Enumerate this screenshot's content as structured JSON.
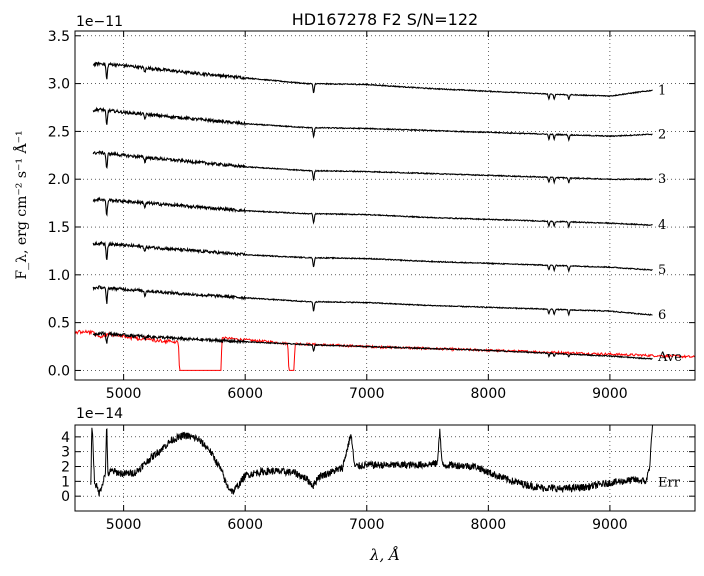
{
  "figure": {
    "title": "HD167278  F2  S/N=122",
    "xlabel": "λ, Å",
    "top_ylabel": "F_λ, erg cm⁻² s⁻¹ Å⁻¹",
    "top_offset_label": "1e−11",
    "bottom_offset_label": "1e−14"
  },
  "colors": {
    "spectra": "#000000",
    "average_overlay": "#ff0000",
    "background": "#ffffff"
  },
  "chart_data": [
    {
      "type": "line",
      "panel": "flux",
      "title": "HD167278  F2  S/N=122",
      "ylabel": "F_λ, erg cm⁻² s⁻¹ Å⁻¹",
      "y_multiplier": "1e-11",
      "xlim": [
        4600,
        9700
      ],
      "ylim": [
        -0.1,
        3.55
      ],
      "x_ticks": [
        5000,
        6000,
        7000,
        8000,
        9000
      ],
      "y_ticks": [
        0.0,
        0.5,
        1.0,
        1.5,
        2.0,
        2.5,
        3.0,
        3.5
      ],
      "x_tick_labels": [
        "5000",
        "6000",
        "7000",
        "8000",
        "9000"
      ],
      "y_tick_labels": [
        "0.0",
        "0.5",
        "1.0",
        "1.5",
        "2.0",
        "2.5",
        "3.0",
        "3.5"
      ],
      "grid": true,
      "absorption_lines": [
        4861,
        5175,
        6563,
        8498,
        8542,
        8662
      ],
      "series": [
        {
          "name": "1",
          "x": [
            4750,
            4800,
            5000,
            5500,
            6000,
            6500,
            7000,
            7500,
            8000,
            8500,
            9000,
            9350
          ],
          "values": [
            3.2,
            3.21,
            3.19,
            3.12,
            3.06,
            3.0,
            2.99,
            2.95,
            2.92,
            2.89,
            2.87,
            2.93
          ]
        },
        {
          "name": "2",
          "x": [
            4750,
            4800,
            5000,
            5500,
            6000,
            6500,
            7000,
            7500,
            8000,
            8500,
            9000,
            9350
          ],
          "values": [
            2.72,
            2.73,
            2.7,
            2.64,
            2.58,
            2.54,
            2.53,
            2.51,
            2.49,
            2.47,
            2.45,
            2.47
          ]
        },
        {
          "name": "3",
          "x": [
            4750,
            4800,
            5000,
            5500,
            6000,
            6500,
            7000,
            7500,
            8000,
            8500,
            9000,
            9350
          ],
          "values": [
            2.27,
            2.28,
            2.25,
            2.19,
            2.13,
            2.09,
            2.08,
            2.06,
            2.04,
            2.02,
            2.0,
            2.0
          ]
        },
        {
          "name": "4",
          "x": [
            4750,
            4800,
            5000,
            5500,
            6000,
            6500,
            7000,
            7500,
            8000,
            8500,
            9000,
            9350
          ],
          "values": [
            1.78,
            1.79,
            1.77,
            1.72,
            1.67,
            1.64,
            1.63,
            1.6,
            1.58,
            1.56,
            1.54,
            1.52
          ]
        },
        {
          "name": "5",
          "x": [
            4750,
            4800,
            5000,
            5500,
            6000,
            6500,
            7000,
            7500,
            8000,
            8500,
            9000,
            9350
          ],
          "values": [
            1.32,
            1.33,
            1.31,
            1.26,
            1.21,
            1.18,
            1.17,
            1.14,
            1.12,
            1.1,
            1.08,
            1.05
          ]
        },
        {
          "name": "6",
          "x": [
            4750,
            4800,
            5000,
            5500,
            6000,
            6500,
            7000,
            7500,
            8000,
            8500,
            9000,
            9350
          ],
          "values": [
            0.86,
            0.87,
            0.85,
            0.8,
            0.76,
            0.72,
            0.71,
            0.68,
            0.66,
            0.64,
            0.62,
            0.58
          ]
        },
        {
          "name": "Ave",
          "x": [
            4750,
            4800,
            5000,
            5500,
            6000,
            6500,
            7000,
            7500,
            8000,
            8500,
            9000,
            9350
          ],
          "values": [
            0.38,
            0.39,
            0.37,
            0.33,
            0.3,
            0.27,
            0.25,
            0.23,
            0.21,
            0.18,
            0.15,
            0.12
          ]
        }
      ],
      "red_overlay": {
        "x": [
          4600,
          4750,
          4800,
          4850,
          4900,
          5000,
          5200,
          5450,
          5460,
          5800,
          5810,
          6000,
          6200,
          6350,
          6360,
          6400,
          6410,
          6600,
          7000,
          7500,
          8000,
          8500,
          9000,
          9500,
          9700
        ],
        "values": [
          0.42,
          0.41,
          0.36,
          0.39,
          0.4,
          0.37,
          0.34,
          0.31,
          0.0,
          0.0,
          0.34,
          0.32,
          0.3,
          0.28,
          0.0,
          0.0,
          0.28,
          0.27,
          0.25,
          0.23,
          0.21,
          0.19,
          0.17,
          0.15,
          0.14
        ]
      },
      "series_labels": [
        "1",
        "2",
        "3",
        "4",
        "5",
        "6",
        "Ave"
      ]
    },
    {
      "type": "line",
      "panel": "error",
      "xlabel": "λ, Å",
      "y_multiplier": "1e-14",
      "xlim": [
        4600,
        9700
      ],
      "ylim": [
        -1.0,
        4.8
      ],
      "x_ticks": [
        5000,
        6000,
        7000,
        8000,
        9000
      ],
      "y_ticks": [
        0,
        1,
        2,
        3,
        4
      ],
      "x_tick_labels": [
        "5000",
        "6000",
        "7000",
        "8000",
        "9000"
      ],
      "y_tick_labels": [
        "0",
        "1",
        "2",
        "3",
        "4"
      ],
      "grid": true,
      "series": [
        {
          "name": "Err",
          "x": [
            4730,
            4740,
            4760,
            4800,
            4850,
            4860,
            4870,
            4900,
            5000,
            5100,
            5200,
            5300,
            5400,
            5500,
            5600,
            5700,
            5800,
            5850,
            5900,
            5950,
            6000,
            6100,
            6200,
            6400,
            6500,
            6560,
            6600,
            6800,
            6870,
            6900,
            7000,
            7200,
            7400,
            7580,
            7600,
            7620,
            7700,
            7900,
            8000,
            8200,
            8400,
            8600,
            8800,
            9000,
            9200,
            9300,
            9330,
            9350
          ],
          "values": [
            1.0,
            5.0,
            1.0,
            0.2,
            1.5,
            5.0,
            1.5,
            1.7,
            1.5,
            1.6,
            2.4,
            3.1,
            3.8,
            4.1,
            3.9,
            3.2,
            1.8,
            0.7,
            0.3,
            0.8,
            1.4,
            1.6,
            1.7,
            1.6,
            1.2,
            0.7,
            1.3,
            1.9,
            4.2,
            2.0,
            2.1,
            2.1,
            2.1,
            2.2,
            4.5,
            2.1,
            2.1,
            2.0,
            1.6,
            1.0,
            0.6,
            0.5,
            0.6,
            0.9,
            1.1,
            1.0,
            2.2,
            5.0
          ]
        }
      ],
      "series_labels": [
        "Err"
      ]
    }
  ]
}
